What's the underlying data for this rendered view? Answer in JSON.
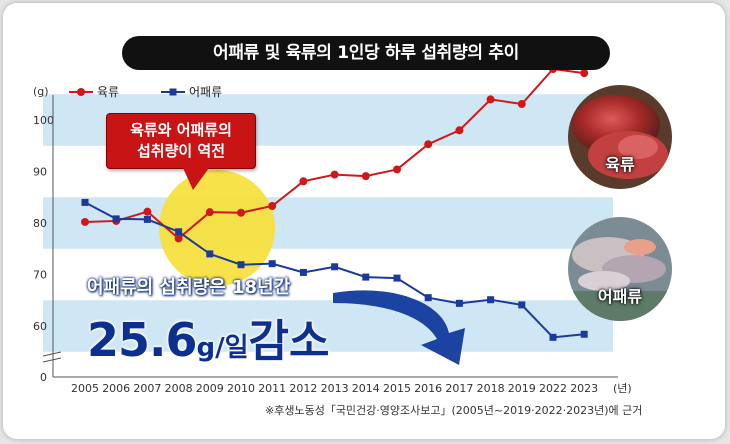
{
  "title": "어패류 및 육류의 1인당 하루 섭취량의 추이",
  "callout": "육류와 어패류의\n섭취량이 역전",
  "decrease_text": "어패류의 섭취량은 18년간",
  "decrease_value": "25.6",
  "decrease_unit": "g/일",
  "decrease_word": "감소",
  "photo_labels": {
    "meat": "육류",
    "fish": "어패류"
  },
  "source": "※후생노동성「국민건강·영양조사보고」(2005년~2019·2022·2023년)에 근거",
  "colors": {
    "meat": "#d01818",
    "fish": "#1c3a9c",
    "band": "#cfe6f4",
    "highlight": "#f7e03a"
  },
  "chart_data": {
    "type": "line",
    "title": "어패류 및 육류의 1인당 하루 섭취량의 추이",
    "ylabel": "(g)",
    "xlabel": "(년)",
    "y_ticks": [
      "0",
      "60",
      "70",
      "80",
      "90",
      "100"
    ],
    "ylim": [
      55,
      105
    ],
    "y_break": true,
    "grid": false,
    "legend_position": "top-left",
    "categories": [
      "2005",
      "2006",
      "2007",
      "2008",
      "2009",
      "2010",
      "2011",
      "2012",
      "2013",
      "2014",
      "2015",
      "2016",
      "2017",
      "2018",
      "2019",
      "2022",
      "2023"
    ],
    "series": [
      {
        "name": "육류",
        "values": [
          80.2,
          80.4,
          82.2,
          77.0,
          82.1,
          82.0,
          83.3,
          88.1,
          89.4,
          89.1,
          90.4,
          95.3,
          98.0,
          104.0,
          103.1,
          109.9,
          109.1
        ]
      },
      {
        "name": "어패류",
        "values": [
          84.0,
          80.8,
          80.7,
          78.3,
          74.0,
          71.9,
          72.1,
          70.4,
          71.5,
          69.5,
          69.3,
          65.5,
          64.4,
          65.1,
          64.1,
          57.8,
          58.4
        ]
      }
    ]
  }
}
